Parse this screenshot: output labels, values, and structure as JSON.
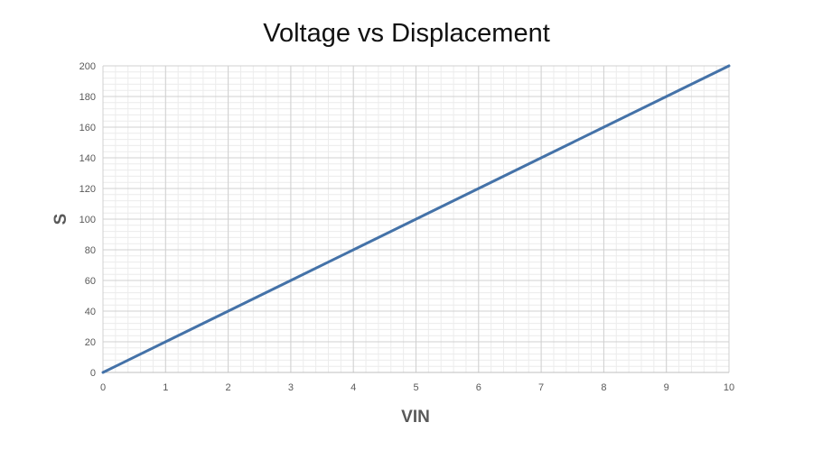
{
  "chart_data": {
    "type": "line",
    "title": "Voltage vs Displacement",
    "xlabel": "VIN",
    "ylabel": "S",
    "xlim": [
      0,
      10
    ],
    "ylim": [
      0,
      200
    ],
    "x_ticks": [
      0,
      1,
      2,
      3,
      4,
      5,
      6,
      7,
      8,
      9,
      10
    ],
    "y_ticks": [
      0,
      20,
      40,
      60,
      80,
      100,
      120,
      140,
      160,
      180,
      200
    ],
    "grid": true,
    "legend": "none",
    "series": [
      {
        "color": "#4472a8",
        "x": [
          0,
          1,
          2,
          3,
          4,
          5,
          6,
          7,
          8,
          9,
          10
        ],
        "y": [
          0,
          20,
          40,
          60,
          80,
          100,
          120,
          140,
          160,
          180,
          200
        ]
      }
    ]
  }
}
